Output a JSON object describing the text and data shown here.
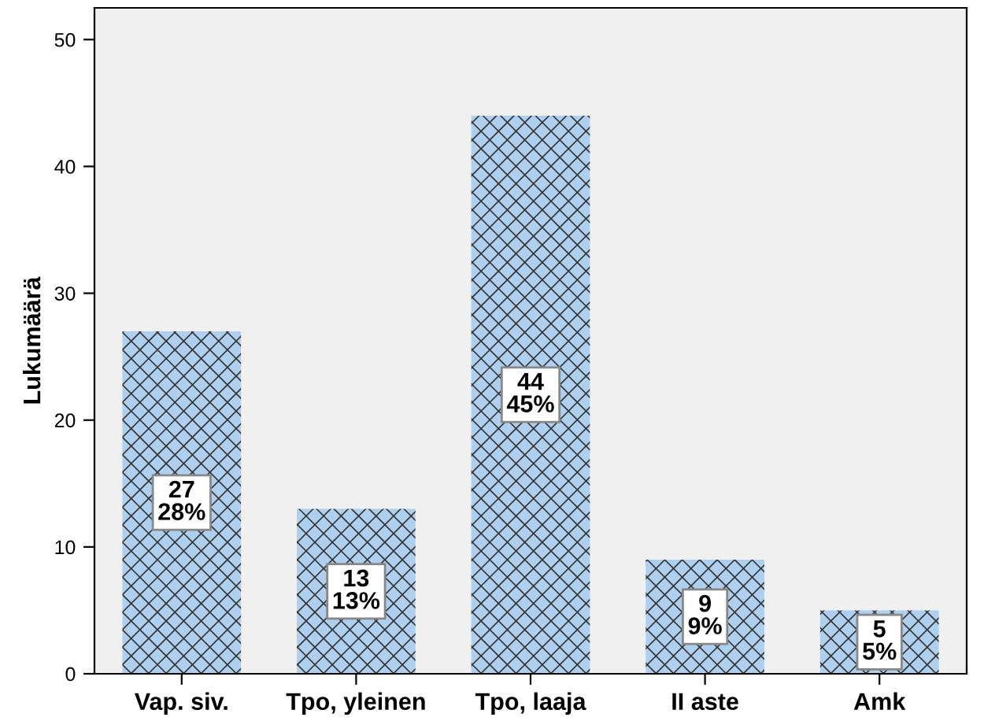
{
  "chart_data": {
    "type": "bar",
    "ylabel": "Lukumäärä",
    "categories": [
      "Vap. siv.",
      "Tpo, yleinen",
      "Tpo, laaja",
      "II aste",
      "Amk"
    ],
    "values": [
      27,
      13,
      44,
      9,
      5
    ],
    "value_labels": [
      "27\n28%",
      "13\n13%",
      "44\n45%",
      "9\n9%",
      "5\n5%"
    ],
    "color": "#aed0ee",
    "ylim": [
      0,
      52.5
    ],
    "yticks": [
      0,
      10,
      20,
      30,
      40,
      50
    ],
    "grid": false,
    "legend": false
  }
}
